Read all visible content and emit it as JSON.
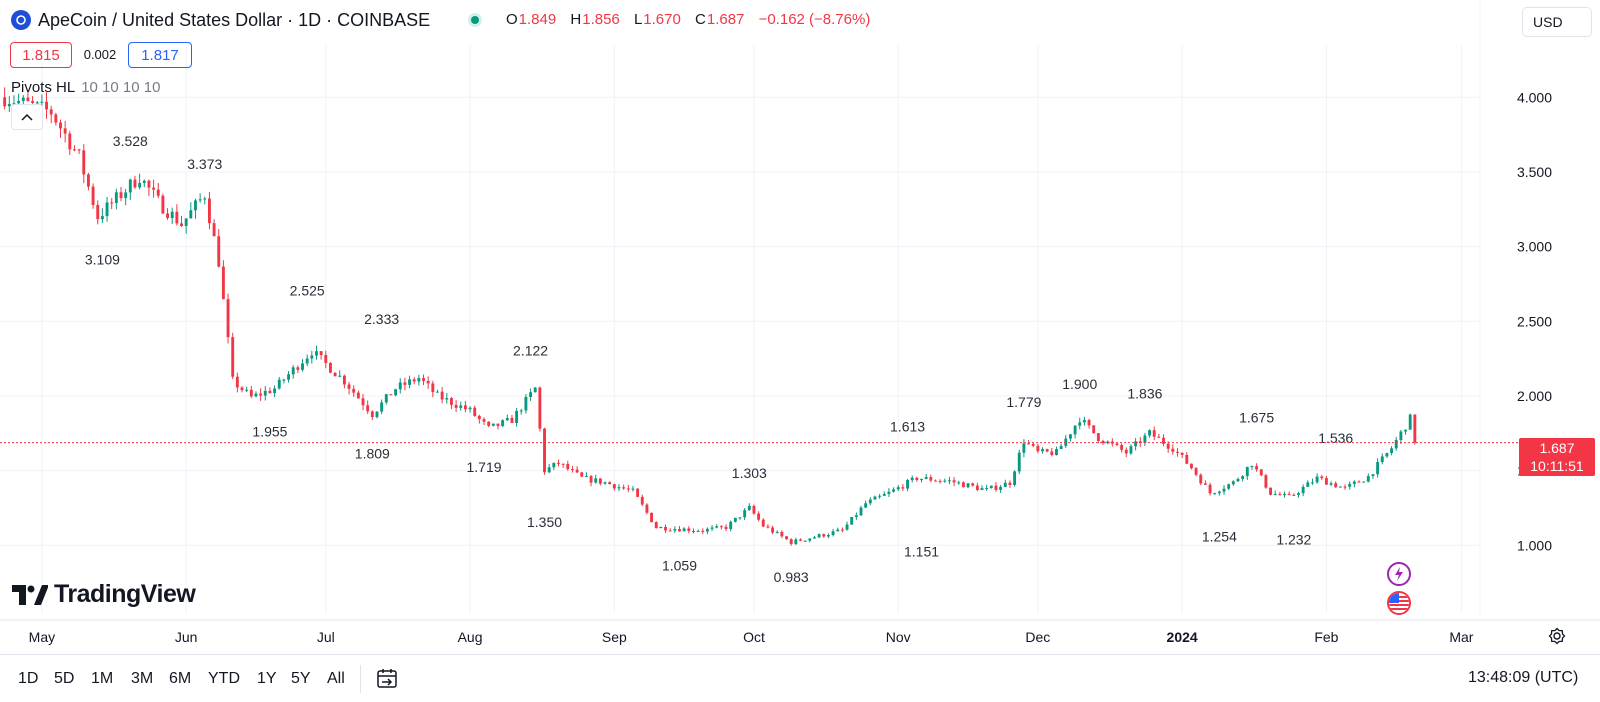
{
  "header": {
    "title": "ApeCoin / United States Dollar · 1D · COINBASE",
    "ohlc": [
      {
        "k": "O",
        "v": "1.849"
      },
      {
        "k": "H",
        "v": "1.856"
      },
      {
        "k": "L",
        "v": "1.670"
      },
      {
        "k": "C",
        "v": "1.687"
      },
      {
        "k": "",
        "v": "−0.162 (−8.76%)"
      }
    ],
    "bid": "1.815",
    "spread": "0.002",
    "ask": "1.817",
    "indicator_name": "Pivots HL",
    "indicator_params": "10 10 10 10",
    "currency": "USD"
  },
  "price_tag": {
    "value": "1.687",
    "countdown": "10:11:51"
  },
  "logo": {
    "text": "TradingView"
  },
  "bottom": {
    "ranges": [
      "1D",
      "5D",
      "1M",
      "3M",
      "6M",
      "YTD",
      "1Y",
      "5Y",
      "All"
    ],
    "clock": "13:48:09 (UTC)"
  },
  "colors": {
    "up": "#089981",
    "down": "#f23645",
    "grid": "#f0f3fa",
    "axis_text": "#131722"
  },
  "chart_data": {
    "type": "candlestick",
    "x_unit": "date (daily)",
    "x_start": "2023-04-23",
    "x_end": "2024-02-20",
    "xlim": [
      "2023-04-22",
      "2024-03-05"
    ],
    "ylim": [
      0.6,
      4.35
    ],
    "y_ticks": [
      1.0,
      1.5,
      2.0,
      2.5,
      3.0,
      3.5,
      4.0
    ],
    "y_tick_labels": [
      "1.000",
      "1.500",
      "2.000",
      "2.500",
      "3.000",
      "3.500",
      "4.000"
    ],
    "x_ticks": [
      {
        "date": "2023-05-01",
        "label": "May"
      },
      {
        "date": "2023-06-01",
        "label": "Jun"
      },
      {
        "date": "2023-07-01",
        "label": "Jul"
      },
      {
        "date": "2023-08-01",
        "label": "Aug"
      },
      {
        "date": "2023-09-01",
        "label": "Sep"
      },
      {
        "date": "2023-10-01",
        "label": "Oct"
      },
      {
        "date": "2023-11-01",
        "label": "Nov"
      },
      {
        "date": "2023-12-01",
        "label": "Dec"
      },
      {
        "date": "2024-01-01",
        "label": "2024",
        "bold": true
      },
      {
        "date": "2024-02-01",
        "label": "Feb"
      },
      {
        "date": "2024-03-01",
        "label": "Mar"
      }
    ],
    "last_price": 1.687,
    "close_path": [
      [
        "2023-04-23",
        4.0
      ],
      [
        "2023-05-03",
        3.9
      ],
      [
        "2023-05-09",
        3.6
      ],
      [
        "2023-05-13",
        3.2
      ],
      [
        "2023-05-22",
        3.47
      ],
      [
        "2023-05-26",
        3.3
      ],
      [
        "2023-05-31",
        3.15
      ],
      [
        "2023-06-05",
        3.35
      ],
      [
        "2023-06-08",
        2.9
      ],
      [
        "2023-06-11",
        2.1
      ],
      [
        "2023-06-15",
        1.99
      ],
      [
        "2023-06-20",
        2.05
      ],
      [
        "2023-06-28",
        2.3
      ],
      [
        "2023-07-05",
        2.1
      ],
      [
        "2023-07-11",
        1.88
      ],
      [
        "2023-07-16",
        2.05
      ],
      [
        "2023-07-21",
        2.12
      ],
      [
        "2023-07-25",
        2.0
      ],
      [
        "2023-08-01",
        1.9
      ],
      [
        "2023-08-05",
        1.78
      ],
      [
        "2023-08-10",
        1.84
      ],
      [
        "2023-08-15",
        2.05
      ],
      [
        "2023-08-17",
        1.5
      ],
      [
        "2023-08-20",
        1.55
      ],
      [
        "2023-08-25",
        1.45
      ],
      [
        "2023-08-30",
        1.42
      ],
      [
        "2023-09-05",
        1.36
      ],
      [
        "2023-09-10",
        1.12
      ],
      [
        "2023-09-20",
        1.1
      ],
      [
        "2023-09-25",
        1.12
      ],
      [
        "2023-09-30",
        1.25
      ],
      [
        "2023-10-03",
        1.13
      ],
      [
        "2023-10-09",
        1.02
      ],
      [
        "2023-10-20",
        1.1
      ],
      [
        "2023-10-25",
        1.28
      ],
      [
        "2023-10-30",
        1.35
      ],
      [
        "2023-11-05",
        1.45
      ],
      [
        "2023-11-12",
        1.43
      ],
      [
        "2023-11-20",
        1.37
      ],
      [
        "2023-11-25",
        1.42
      ],
      [
        "2023-11-28",
        1.7
      ],
      [
        "2023-12-01",
        1.62
      ],
      [
        "2023-12-05",
        1.62
      ],
      [
        "2023-12-10",
        1.85
      ],
      [
        "2023-12-14",
        1.72
      ],
      [
        "2023-12-20",
        1.62
      ],
      [
        "2023-12-25",
        1.75
      ],
      [
        "2023-12-30",
        1.65
      ],
      [
        "2024-01-03",
        1.52
      ],
      [
        "2024-01-07",
        1.35
      ],
      [
        "2024-01-12",
        1.42
      ],
      [
        "2024-01-16",
        1.55
      ],
      [
        "2024-01-20",
        1.35
      ],
      [
        "2024-01-24",
        1.32
      ],
      [
        "2024-01-30",
        1.45
      ],
      [
        "2024-02-05",
        1.38
      ],
      [
        "2024-02-10",
        1.46
      ],
      [
        "2024-02-15",
        1.65
      ],
      [
        "2024-02-18",
        1.8
      ],
      [
        "2024-02-19",
        1.849
      ],
      [
        "2024-02-20",
        1.687
      ]
    ],
    "pivots": [
      {
        "date": "2023-05-20",
        "value": 3.528,
        "label": "3.528",
        "type": "high"
      },
      {
        "date": "2023-06-05",
        "value": 3.373,
        "label": "3.373",
        "type": "high"
      },
      {
        "date": "2023-05-14",
        "value": 3.109,
        "label": "3.109",
        "type": "low"
      },
      {
        "date": "2023-06-27",
        "value": 2.525,
        "label": "2.525",
        "type": "high"
      },
      {
        "date": "2023-07-13",
        "value": 2.333,
        "label": "2.333",
        "type": "high"
      },
      {
        "date": "2023-06-19",
        "value": 1.955,
        "label": "1.955",
        "type": "low"
      },
      {
        "date": "2023-07-11",
        "value": 1.809,
        "label": "1.809",
        "type": "low"
      },
      {
        "date": "2023-08-14",
        "value": 2.122,
        "label": "2.122",
        "type": "high"
      },
      {
        "date": "2023-08-04",
        "value": 1.719,
        "label": "1.719",
        "type": "low"
      },
      {
        "date": "2023-08-17",
        "value": 1.35,
        "label": "1.350",
        "type": "low"
      },
      {
        "date": "2023-09-15",
        "value": 1.059,
        "label": "1.059",
        "type": "low"
      },
      {
        "date": "2023-09-30",
        "value": 1.303,
        "label": "1.303",
        "type": "high"
      },
      {
        "date": "2023-10-09",
        "value": 0.983,
        "label": "0.983",
        "type": "low"
      },
      {
        "date": "2023-11-03",
        "value": 1.613,
        "label": "1.613",
        "type": "high"
      },
      {
        "date": "2023-11-06",
        "value": 1.151,
        "label": "1.151",
        "type": "low"
      },
      {
        "date": "2023-11-28",
        "value": 1.779,
        "label": "1.779",
        "type": "high"
      },
      {
        "date": "2023-12-10",
        "value": 1.9,
        "label": "1.900",
        "type": "high"
      },
      {
        "date": "2023-12-24",
        "value": 1.836,
        "label": "1.836",
        "type": "high"
      },
      {
        "date": "2024-01-09",
        "value": 1.254,
        "label": "1.254",
        "type": "low"
      },
      {
        "date": "2024-01-17",
        "value": 1.675,
        "label": "1.675",
        "type": "high"
      },
      {
        "date": "2024-01-25",
        "value": 1.232,
        "label": "1.232",
        "type": "low"
      },
      {
        "date": "2024-02-03",
        "value": 1.536,
        "label": "1.536",
        "type": "high"
      }
    ]
  }
}
